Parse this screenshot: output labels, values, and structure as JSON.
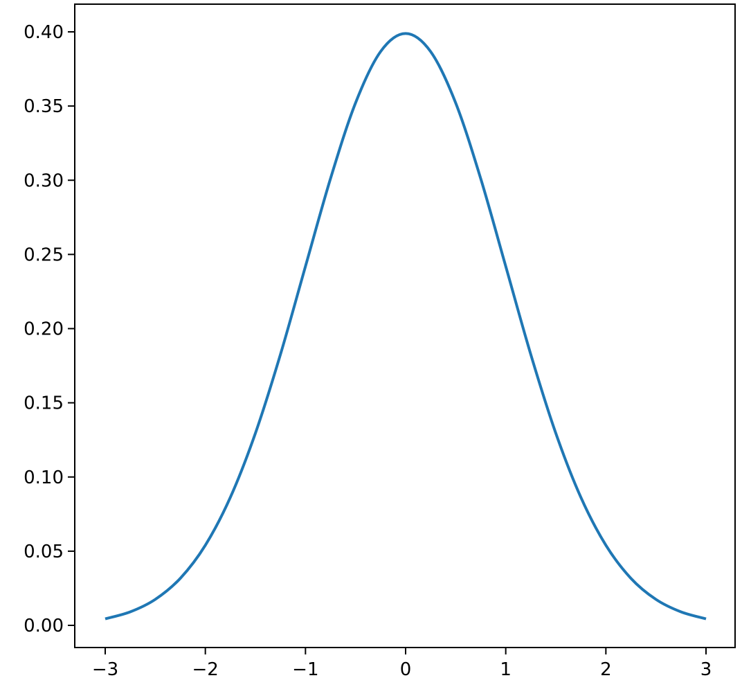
{
  "chart_data": {
    "type": "line",
    "title": "",
    "xlabel": "",
    "ylabel": "",
    "xlim": [
      -3.3,
      3.3
    ],
    "ylim": [
      -0.0149,
      0.4187
    ],
    "grid": false,
    "x_ticks": [
      -3,
      -2,
      -1,
      0,
      1,
      2,
      3
    ],
    "x_tick_labels": [
      "−3",
      "−2",
      "−1",
      "0",
      "1",
      "2",
      "3"
    ],
    "y_ticks": [
      0,
      0.05,
      0.1,
      0.15,
      0.2,
      0.25,
      0.3,
      0.35,
      0.4
    ],
    "y_tick_labels": [
      "0.00",
      "0.05",
      "0.10",
      "0.15",
      "0.20",
      "0.25",
      "0.30",
      "0.35",
      "0.40"
    ],
    "series": [
      {
        "color": "#1f77b4",
        "x": [
          -3,
          -2.75,
          -2.5,
          -2.25,
          -2,
          -1.75,
          -1.5,
          -1.25,
          -1,
          -0.75,
          -0.5,
          -0.25,
          0,
          0.25,
          0.5,
          0.75,
          1,
          1.25,
          1.5,
          1.75,
          2,
          2.25,
          2.5,
          2.75,
          3
        ],
        "y": [
          0.0044,
          0.0091,
          0.0175,
          0.0317,
          0.054,
          0.0863,
          0.1295,
          0.1826,
          0.242,
          0.3011,
          0.3521,
          0.3867,
          0.3989,
          0.3867,
          0.3521,
          0.3011,
          0.242,
          0.1826,
          0.1295,
          0.0863,
          0.054,
          0.0317,
          0.0175,
          0.0091,
          0.0044
        ]
      }
    ]
  }
}
